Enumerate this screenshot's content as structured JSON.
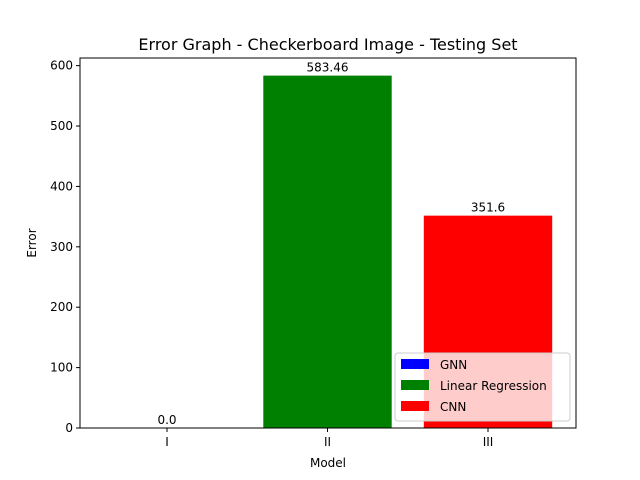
{
  "chart_data": {
    "type": "bar",
    "title": "Error Graph - Checkerboard Image - Testing Set",
    "xlabel": "Model",
    "ylabel": "Error",
    "categories": [
      "I",
      "II",
      "III"
    ],
    "series": [
      {
        "name": "GNN",
        "color": "#0000ff",
        "values": [
          0.0,
          null,
          null
        ]
      },
      {
        "name": "Linear Regression",
        "color": "#008000",
        "values": [
          null,
          583.46,
          null
        ]
      },
      {
        "name": "CNN",
        "color": "#ff0000",
        "values": [
          null,
          null,
          351.6
        ]
      }
    ],
    "data_labels": [
      "0.0",
      "583.46",
      "351.6"
    ],
    "ylim": [
      0,
      612.633
    ],
    "yticks": [
      0,
      100,
      200,
      300,
      400,
      500,
      600
    ],
    "grid": false,
    "legend": {
      "position": "lower-right"
    }
  }
}
